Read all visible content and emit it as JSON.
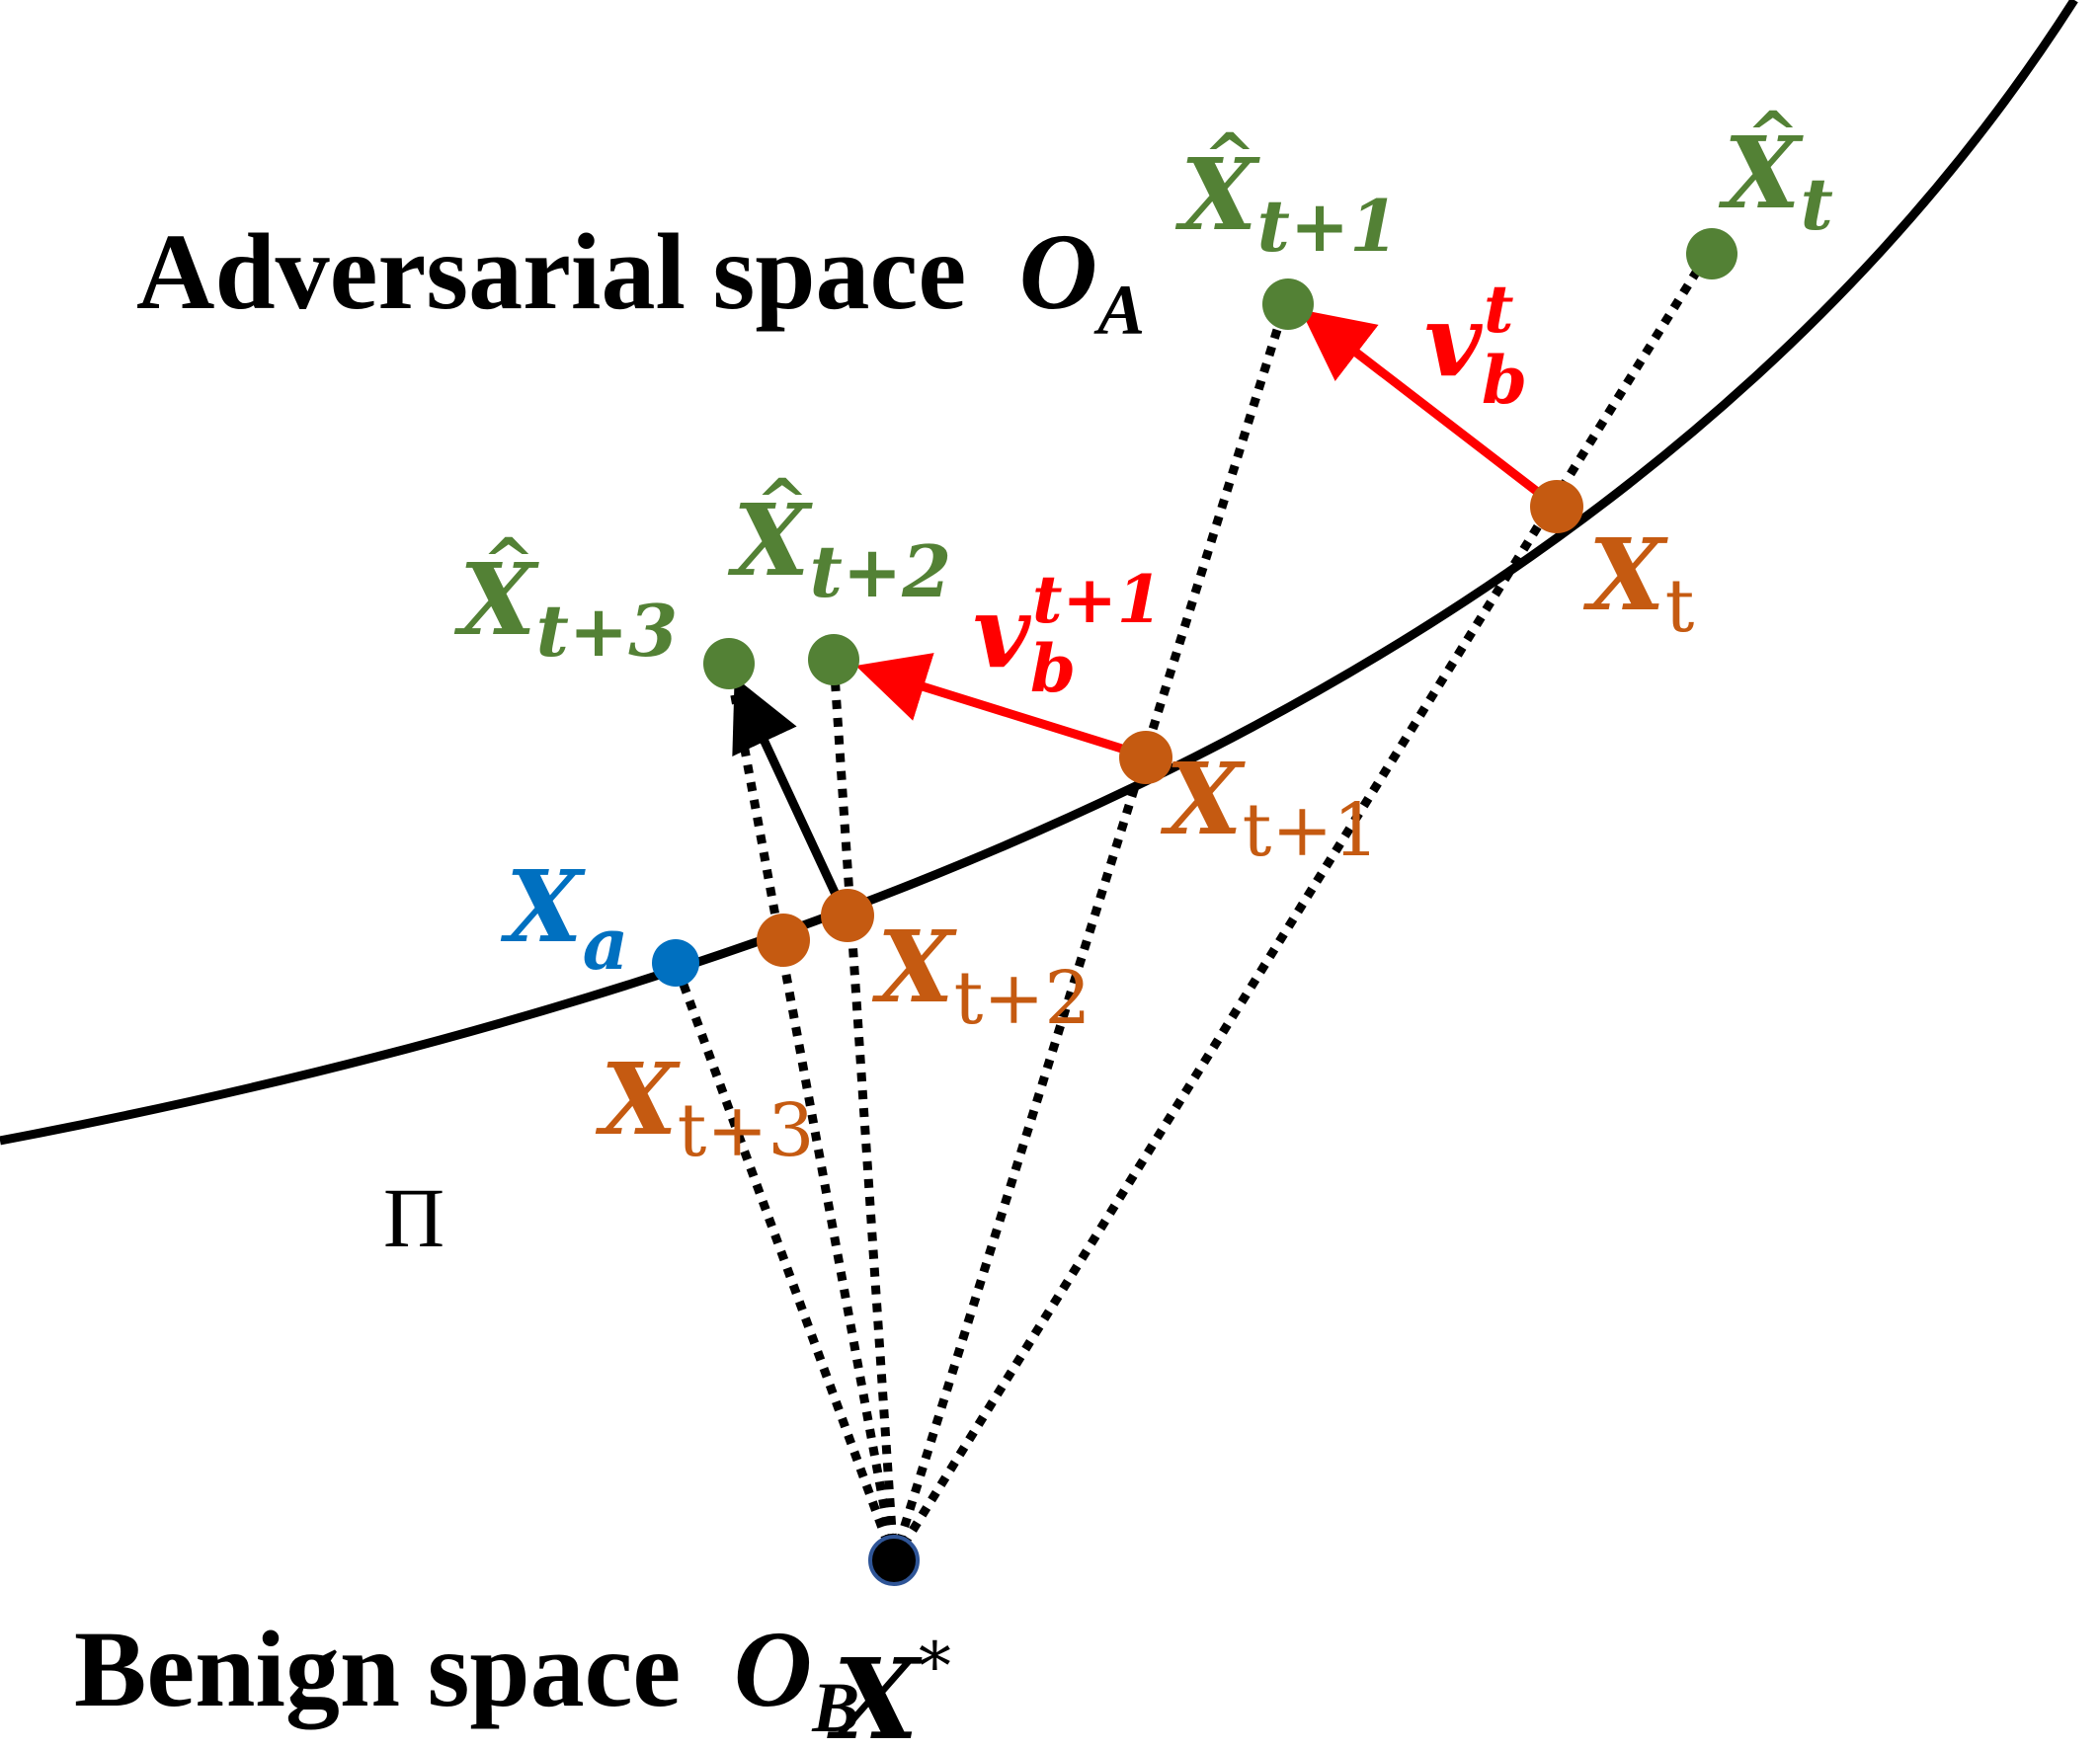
{
  "regions": {
    "adversarial_label": "Adversarial space",
    "adversarial_symbol": "O",
    "adversarial_subscript": "A",
    "benign_label": "Benign space",
    "benign_symbol": "O",
    "benign_subscript": "B",
    "boundary_symbol": "Π"
  },
  "points": {
    "x_star": {
      "base": "X",
      "sup": "*"
    },
    "x_a": {
      "base": "X",
      "sub": "a"
    },
    "x_t": {
      "base": "X",
      "sub": "t"
    },
    "x_t1": {
      "base": "X",
      "sub": "t+1"
    },
    "x_t2": {
      "base": "X",
      "sub": "t+2"
    },
    "x_t3": {
      "base": "X",
      "sub": "t+3"
    },
    "xhat_t": {
      "base": "X",
      "hat": "^",
      "sub": "t"
    },
    "xhat_t1": {
      "base": "X",
      "hat": "^",
      "sub": "t+1"
    },
    "xhat_t2": {
      "base": "X",
      "hat": "^",
      "sub": "t+2"
    },
    "xhat_t3": {
      "base": "X",
      "hat": "^",
      "sub": "t+3"
    }
  },
  "vectors": {
    "v_t": {
      "base": "v",
      "sub": "b",
      "sup": "t"
    },
    "v_t1": {
      "base": "v",
      "sub": "b",
      "sup": "t+1"
    }
  },
  "colors": {
    "boundary_point": "#C55A11",
    "projected_point": "#538135",
    "gradient_vector": "#FF0000",
    "adversarial_start": "#0070C0",
    "benign_origin": "#000000",
    "boundary_curve": "#000000"
  }
}
